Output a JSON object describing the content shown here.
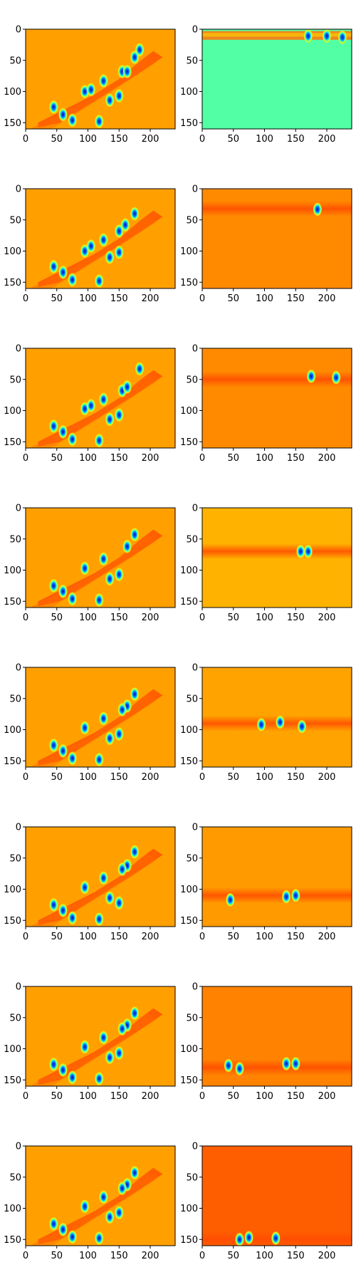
{
  "chart_data": {
    "type": "heatmap",
    "layout_rows": 8,
    "layout_cols": 2,
    "colormap": "jet",
    "image_shape": [
      160,
      240
    ],
    "xticks": [
      0,
      50,
      100,
      150,
      200
    ],
    "yticks": [
      0,
      50,
      100,
      150
    ],
    "xlim": [
      0,
      240
    ],
    "ylim": [
      160,
      0
    ],
    "background_colors": {
      "left": "#ffa000",
      "right": [
        "#52ffa5",
        "#ff8a00",
        "#ff8a00",
        "#ffb300",
        "#ffa300",
        "#ff9a00",
        "#ff8200",
        "#ff5e00"
      ]
    },
    "hot_band_color": "#ff4a00",
    "minimum_color": "#0010a8",
    "panels": [
      {
        "row": 1,
        "col": 1,
        "blobs": [
          [
            183,
            33
          ],
          [
            175,
            45
          ],
          [
            155,
            68
          ],
          [
            163,
            68
          ],
          [
            125,
            83
          ],
          [
            150,
            107
          ],
          [
            135,
            114
          ],
          [
            95,
            100
          ],
          [
            105,
            97
          ],
          [
            45,
            125
          ],
          [
            60,
            137
          ],
          [
            75,
            146
          ],
          [
            118,
            148
          ]
        ]
      },
      {
        "row": 1,
        "col": 2,
        "band_y": 10,
        "blobs": [
          [
            170,
            11
          ],
          [
            200,
            11
          ],
          [
            225,
            13
          ]
        ]
      },
      {
        "row": 2,
        "col": 1,
        "blobs": [
          [
            175,
            40
          ],
          [
            160,
            58
          ],
          [
            150,
            68
          ],
          [
            125,
            82
          ],
          [
            150,
            102
          ],
          [
            135,
            110
          ],
          [
            95,
            100
          ],
          [
            105,
            92
          ],
          [
            45,
            125
          ],
          [
            60,
            134
          ],
          [
            75,
            146
          ],
          [
            118,
            148
          ]
        ]
      },
      {
        "row": 2,
        "col": 2,
        "band_y": 32,
        "blobs": [
          [
            185,
            33
          ]
        ]
      },
      {
        "row": 3,
        "col": 1,
        "blobs": [
          [
            183,
            33
          ],
          [
            155,
            68
          ],
          [
            163,
            62
          ],
          [
            125,
            82
          ],
          [
            150,
            107
          ],
          [
            135,
            114
          ],
          [
            95,
            97
          ],
          [
            105,
            92
          ],
          [
            45,
            125
          ],
          [
            60,
            134
          ],
          [
            75,
            146
          ],
          [
            118,
            148
          ]
        ]
      },
      {
        "row": 3,
        "col": 2,
        "band_y": 50,
        "blobs": [
          [
            175,
            45
          ],
          [
            215,
            47
          ]
        ]
      },
      {
        "row": 4,
        "col": 1,
        "blobs": [
          [
            175,
            43
          ],
          [
            163,
            62
          ],
          [
            125,
            82
          ],
          [
            150,
            107
          ],
          [
            135,
            114
          ],
          [
            95,
            97
          ],
          [
            45,
            125
          ],
          [
            60,
            134
          ],
          [
            75,
            146
          ],
          [
            118,
            148
          ]
        ]
      },
      {
        "row": 4,
        "col": 2,
        "band_y": 70,
        "blobs": [
          [
            158,
            70
          ],
          [
            170,
            70
          ]
        ]
      },
      {
        "row": 5,
        "col": 1,
        "blobs": [
          [
            175,
            43
          ],
          [
            163,
            62
          ],
          [
            155,
            68
          ],
          [
            125,
            82
          ],
          [
            150,
            107
          ],
          [
            135,
            114
          ],
          [
            95,
            97
          ],
          [
            45,
            125
          ],
          [
            60,
            134
          ],
          [
            75,
            146
          ],
          [
            118,
            148
          ]
        ]
      },
      {
        "row": 5,
        "col": 2,
        "band_y": 90,
        "blobs": [
          [
            95,
            92
          ],
          [
            125,
            88
          ],
          [
            160,
            95
          ]
        ]
      },
      {
        "row": 6,
        "col": 1,
        "blobs": [
          [
            175,
            40
          ],
          [
            163,
            62
          ],
          [
            155,
            68
          ],
          [
            125,
            82
          ],
          [
            150,
            122
          ],
          [
            135,
            114
          ],
          [
            95,
            97
          ],
          [
            45,
            125
          ],
          [
            60,
            134
          ],
          [
            75,
            146
          ],
          [
            118,
            148
          ]
        ]
      },
      {
        "row": 6,
        "col": 2,
        "band_y": 110,
        "blobs": [
          [
            135,
            112
          ],
          [
            150,
            110
          ],
          [
            45,
            117
          ]
        ]
      },
      {
        "row": 7,
        "col": 1,
        "blobs": [
          [
            175,
            43
          ],
          [
            163,
            62
          ],
          [
            155,
            68
          ],
          [
            125,
            82
          ],
          [
            150,
            107
          ],
          [
            135,
            114
          ],
          [
            95,
            97
          ],
          [
            45,
            125
          ],
          [
            60,
            134
          ],
          [
            75,
            146
          ],
          [
            118,
            148
          ]
        ]
      },
      {
        "row": 7,
        "col": 2,
        "band_y": 130,
        "blobs": [
          [
            42,
            127
          ],
          [
            60,
            132
          ],
          [
            135,
            124
          ],
          [
            150,
            124
          ]
        ]
      },
      {
        "row": 8,
        "col": 1,
        "blobs": [
          [
            175,
            43
          ],
          [
            163,
            62
          ],
          [
            155,
            68
          ],
          [
            125,
            82
          ],
          [
            150,
            107
          ],
          [
            135,
            114
          ],
          [
            95,
            97
          ],
          [
            45,
            125
          ],
          [
            60,
            134
          ],
          [
            75,
            146
          ],
          [
            118,
            148
          ]
        ]
      },
      {
        "row": 8,
        "col": 2,
        "band_y": 150,
        "blobs": [
          [
            60,
            150
          ],
          [
            75,
            147
          ],
          [
            118,
            148
          ]
        ]
      }
    ]
  }
}
